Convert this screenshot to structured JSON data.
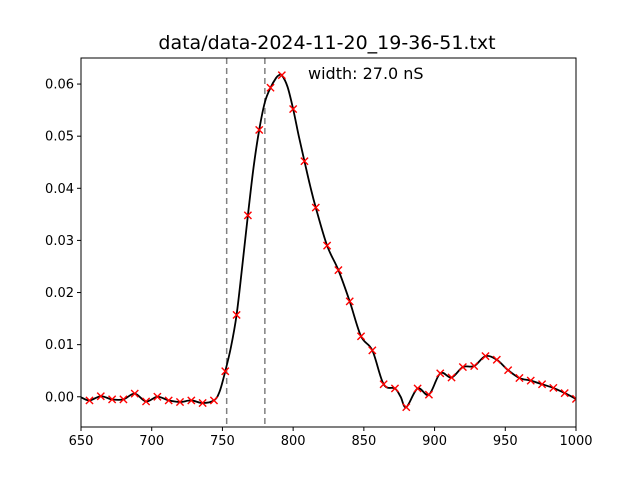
{
  "chart_data": {
    "type": "line",
    "title": "data/data-2024-11-20_19-36-51.txt",
    "xlabel": "",
    "ylabel": "",
    "xlim": [
      650,
      1000
    ],
    "ylim": [
      -0.0058,
      0.065
    ],
    "xticks": [
      650,
      700,
      750,
      800,
      850,
      900,
      950,
      1000
    ],
    "yticks": [
      0.0,
      0.01,
      0.02,
      0.03,
      0.04,
      0.05,
      0.06
    ],
    "ytick_labels": [
      "0.00",
      "0.01",
      "0.02",
      "0.03",
      "0.04",
      "0.05",
      "0.06"
    ],
    "grid": false,
    "annotation": "width: 27.0 nS",
    "vlines": [
      753,
      780
    ],
    "colors": {
      "line": "#000000",
      "markers": "#ff0000",
      "vlines": "#808080"
    },
    "series": [
      {
        "kind": "markers",
        "marker": "x",
        "x": [
          656,
          664,
          672,
          680,
          688,
          696,
          704,
          712,
          720,
          728,
          736,
          744,
          752,
          760,
          768,
          776,
          784,
          792,
          800,
          808,
          816,
          824,
          832,
          840,
          848,
          856,
          864,
          872,
          880,
          888,
          896,
          904,
          912,
          920,
          928,
          936,
          944,
          952,
          960,
          968,
          976,
          984,
          992,
          1000
        ],
        "values": [
          -0.0007,
          0.0001,
          -0.0005,
          -0.0005,
          0.0006,
          -0.0009,
          0.0,
          -0.0007,
          -0.001,
          -0.0007,
          -0.0012,
          -0.0007,
          0.0049,
          0.0157,
          0.0348,
          0.0512,
          0.0593,
          0.0617,
          0.0552,
          0.0452,
          0.0363,
          0.029,
          0.0243,
          0.0183,
          0.0116,
          0.0089,
          0.0024,
          0.0016,
          -0.002,
          0.0016,
          0.0004,
          0.0045,
          0.0037,
          0.0057,
          0.0059,
          0.0078,
          0.0071,
          0.0051,
          0.0036,
          0.0031,
          0.0024,
          0.0017,
          0.0007,
          -0.0004
        ]
      },
      {
        "kind": "line",
        "x": [
          650,
          656,
          664,
          672,
          680,
          688,
          696,
          704,
          712,
          720,
          728,
          736,
          744,
          748,
          752,
          756,
          760,
          764,
          768,
          772,
          776,
          780,
          784,
          788,
          790,
          792,
          796,
          800,
          804,
          808,
          812,
          816,
          824,
          832,
          840,
          848,
          856,
          864,
          872,
          876,
          880,
          888,
          896,
          904,
          912,
          920,
          928,
          936,
          944,
          952,
          960,
          968,
          976,
          984,
          992,
          1000
        ],
        "values": [
          -0.0001,
          -0.0007,
          0.0001,
          -0.0005,
          -0.0005,
          0.0006,
          -0.0009,
          0.0,
          -0.0007,
          -0.001,
          -0.0007,
          -0.0012,
          -0.0007,
          0.001,
          0.0049,
          0.0095,
          0.0157,
          0.025,
          0.0348,
          0.044,
          0.0512,
          0.0565,
          0.0593,
          0.0612,
          0.0617,
          0.0617,
          0.0595,
          0.0552,
          0.05,
          0.0452,
          0.0405,
          0.0363,
          0.029,
          0.0243,
          0.0183,
          0.0116,
          0.0089,
          0.0024,
          0.0016,
          0.0,
          -0.002,
          0.0016,
          0.0004,
          0.0045,
          0.0037,
          0.0057,
          0.0059,
          0.0078,
          0.0071,
          0.0051,
          0.0036,
          0.0031,
          0.0024,
          0.0017,
          0.0007,
          -0.0004
        ]
      }
    ]
  }
}
